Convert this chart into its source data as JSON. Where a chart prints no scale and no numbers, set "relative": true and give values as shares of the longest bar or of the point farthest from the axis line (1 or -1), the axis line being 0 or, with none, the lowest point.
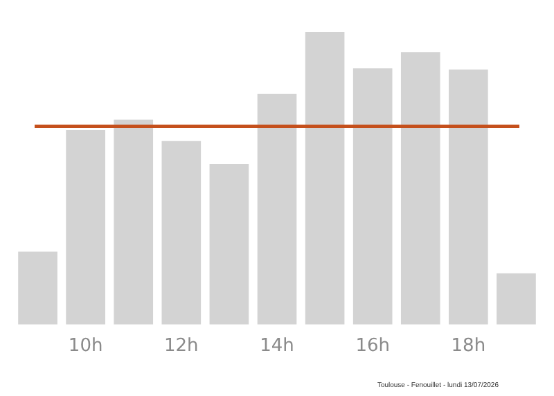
{
  "chart_data": {
    "type": "bar",
    "relative": true,
    "categories": [
      null,
      "10h",
      null,
      "12h",
      null,
      "14h",
      null,
      "16h",
      null,
      "18h",
      null
    ],
    "values": [
      0.249,
      0.664,
      0.7,
      0.627,
      0.548,
      0.788,
      1,
      0.876,
      0.931,
      0.871,
      0.175
    ],
    "color": "#d3d3d3",
    "ref_lines": [
      {
        "axis": "y",
        "value": 0.677,
        "color": "#c5501c"
      }
    ],
    "annotations": [
      "Toulouse - Fenouillet - lundi 13/07/2026"
    ],
    "grid": false,
    "legend": false
  }
}
